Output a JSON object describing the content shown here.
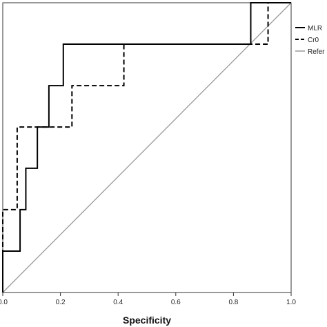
{
  "chart_data": {
    "type": "line",
    "title": "",
    "xlabel": "Specificity",
    "ylabel": "",
    "xlim": [
      0,
      1
    ],
    "ylim": [
      0,
      1
    ],
    "x_ticks": [
      "0.0",
      "0.2",
      "0.4",
      "0.6",
      "0.8",
      "1.0"
    ],
    "grid": false,
    "legend_position": "right",
    "series": [
      {
        "name": "MLR",
        "line_style": "solid",
        "color": "#000000",
        "x": [
          0,
          0,
          0.06,
          0.06,
          0.08,
          0.08,
          0.12,
          0.12,
          0.16,
          0.16,
          0.21,
          0.21,
          0.86,
          0.86,
          1.0
        ],
        "y": [
          0,
          0.143,
          0.143,
          0.286,
          0.286,
          0.429,
          0.429,
          0.571,
          0.571,
          0.714,
          0.714,
          0.857,
          0.857,
          1.0,
          1.0
        ]
      },
      {
        "name": "Cr0",
        "line_style": "dashed",
        "color": "#000000",
        "x": [
          0,
          0,
          0.05,
          0.05,
          0.24,
          0.24,
          0.42,
          0.42,
          0.92,
          0.92,
          1.0
        ],
        "y": [
          0,
          0.286,
          0.286,
          0.571,
          0.571,
          0.714,
          0.714,
          0.857,
          0.857,
          1.0,
          1.0
        ]
      },
      {
        "name": "Refer",
        "line_style": "solid",
        "color": "#999999",
        "x": [
          0,
          1
        ],
        "y": [
          0,
          1
        ]
      }
    ]
  }
}
